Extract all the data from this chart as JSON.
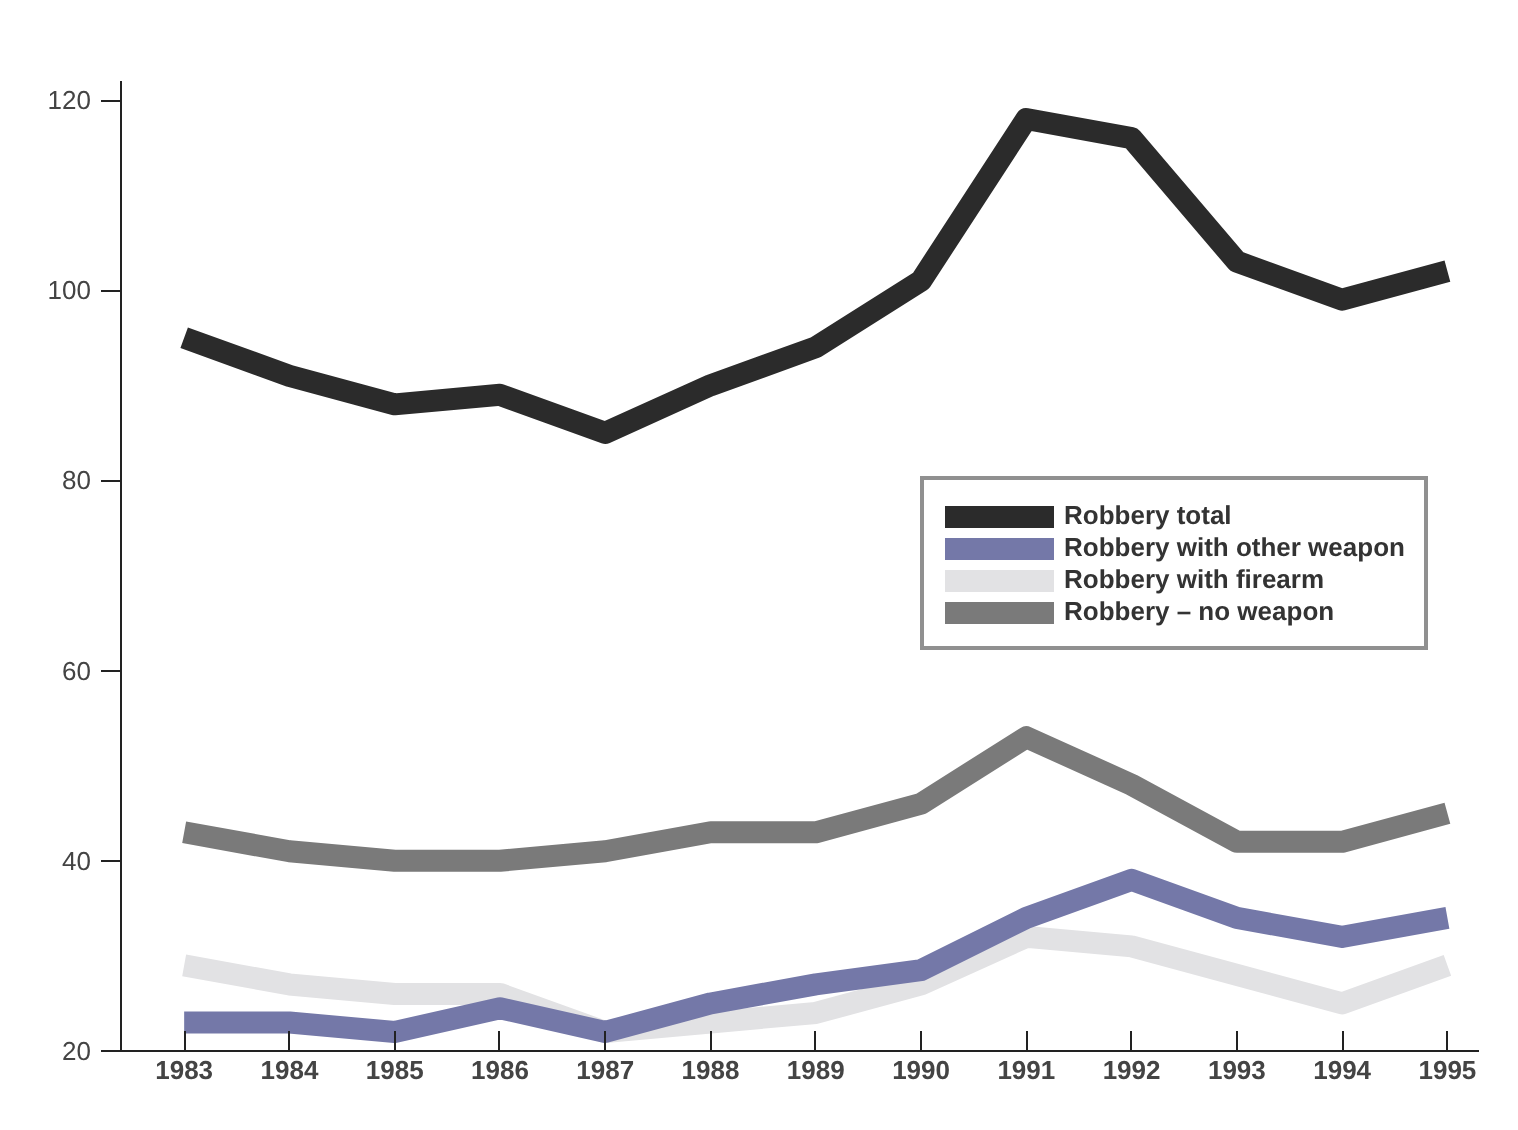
{
  "chart_data": {
    "type": "line",
    "x": [
      1983,
      1984,
      1985,
      1986,
      1987,
      1988,
      1989,
      1990,
      1991,
      1992,
      1993,
      1994,
      1995
    ],
    "xlim": [
      1982.4,
      1995.3
    ],
    "xticks": [
      1983,
      1984,
      1985,
      1986,
      1987,
      1988,
      1989,
      1990,
      1991,
      1992,
      1993,
      1994,
      1995
    ],
    "ylim": [
      20,
      122
    ],
    "yticks": [
      20,
      40,
      60,
      80,
      100,
      120
    ],
    "grid": false,
    "legend": "right",
    "marker": "none",
    "line_style": "solid",
    "series": [
      {
        "name": "Robbery total",
        "color": "#2b2b2b",
        "values": [
          95,
          91,
          88,
          89,
          85,
          90,
          94,
          101,
          118,
          116,
          103,
          99,
          102
        ]
      },
      {
        "name": "Robbery with other weapon",
        "color": "#7478a8",
        "values": [
          23,
          23,
          22,
          24.5,
          22,
          25,
          27,
          28.5,
          34,
          38,
          34,
          32,
          34
        ]
      },
      {
        "name": "Robbery with firearm",
        "color": "#e2e2e4",
        "values": [
          29,
          27,
          26,
          26,
          22,
          23,
          24,
          27,
          32,
          31,
          28,
          25,
          29
        ]
      },
      {
        "name": "Robbery – no weapon",
        "color": "#7a7a7a",
        "values": [
          43,
          41,
          40,
          40,
          41,
          43,
          43,
          46,
          53,
          48,
          42,
          42,
          45
        ]
      }
    ]
  }
}
